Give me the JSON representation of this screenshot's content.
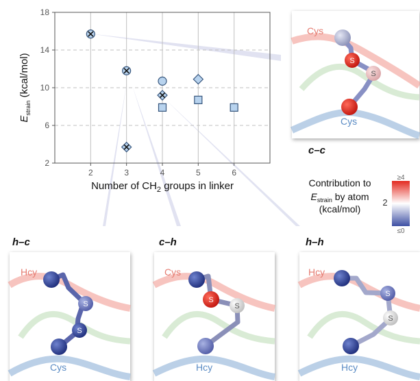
{
  "chart_data": {
    "type": "scatter",
    "xlabel_main": "Number of CH",
    "xlabel_sub": "2",
    "xlabel_tail": " groups in linker",
    "ylabel_main": "E",
    "ylabel_sub": "strain",
    "ylabel_tail": " (kcal/mol)",
    "xlim": [
      1,
      7
    ],
    "ylim": [
      2,
      18
    ],
    "x_ticks": [
      "2",
      "3",
      "4",
      "5",
      "6"
    ],
    "y_ticks": [
      "2",
      "6",
      "10",
      "14",
      "18"
    ],
    "grid": true,
    "series": [
      {
        "marker": "circle-x",
        "points": [
          [
            2,
            15.7
          ],
          [
            3,
            11.8
          ]
        ]
      },
      {
        "marker": "diamond-x",
        "points": [
          [
            3,
            3.7
          ],
          [
            4,
            9.2
          ]
        ]
      },
      {
        "marker": "circle",
        "points": [
          [
            4,
            10.7
          ]
        ]
      },
      {
        "marker": "diamond",
        "points": [
          [
            5,
            10.9
          ]
        ]
      },
      {
        "marker": "square",
        "points": [
          [
            4,
            7.9
          ],
          [
            5,
            8.7
          ],
          [
            6,
            7.9
          ]
        ]
      }
    ]
  },
  "colorbar": {
    "title_line1": "Contribution to",
    "title_E": "E",
    "title_sub": "strain",
    "title_tail": " by atom",
    "title_line3": "(kcal/mol)",
    "max_label": "≥4",
    "mid_label": "2",
    "min_label": "≤0",
    "colors": {
      "high": "#e32a20",
      "mid": "#ffffff",
      "low": "#3d4fa3"
    }
  },
  "panels": {
    "cc": {
      "label": "c–c",
      "top_chain": "Cys",
      "bottom_chain": "Cys"
    },
    "hc": {
      "label": "h–c",
      "top_chain": "Hcy",
      "bottom_chain": "Cys"
    },
    "ch": {
      "label": "c–h",
      "top_chain": "Cys",
      "bottom_chain": "Hcy"
    },
    "hh": {
      "label": "h–h",
      "top_chain": "Hcy",
      "bottom_chain": "Hcy"
    }
  },
  "atom_label": "S",
  "colors": {
    "marker_fill": "#b8d3ee",
    "marker_stroke": "#36557c",
    "grid": "#bfbfbf",
    "top_ribbon": "#f0948a",
    "mid_ribbon": "#b9dbb2",
    "bottom_ribbon": "#8db1d7"
  }
}
